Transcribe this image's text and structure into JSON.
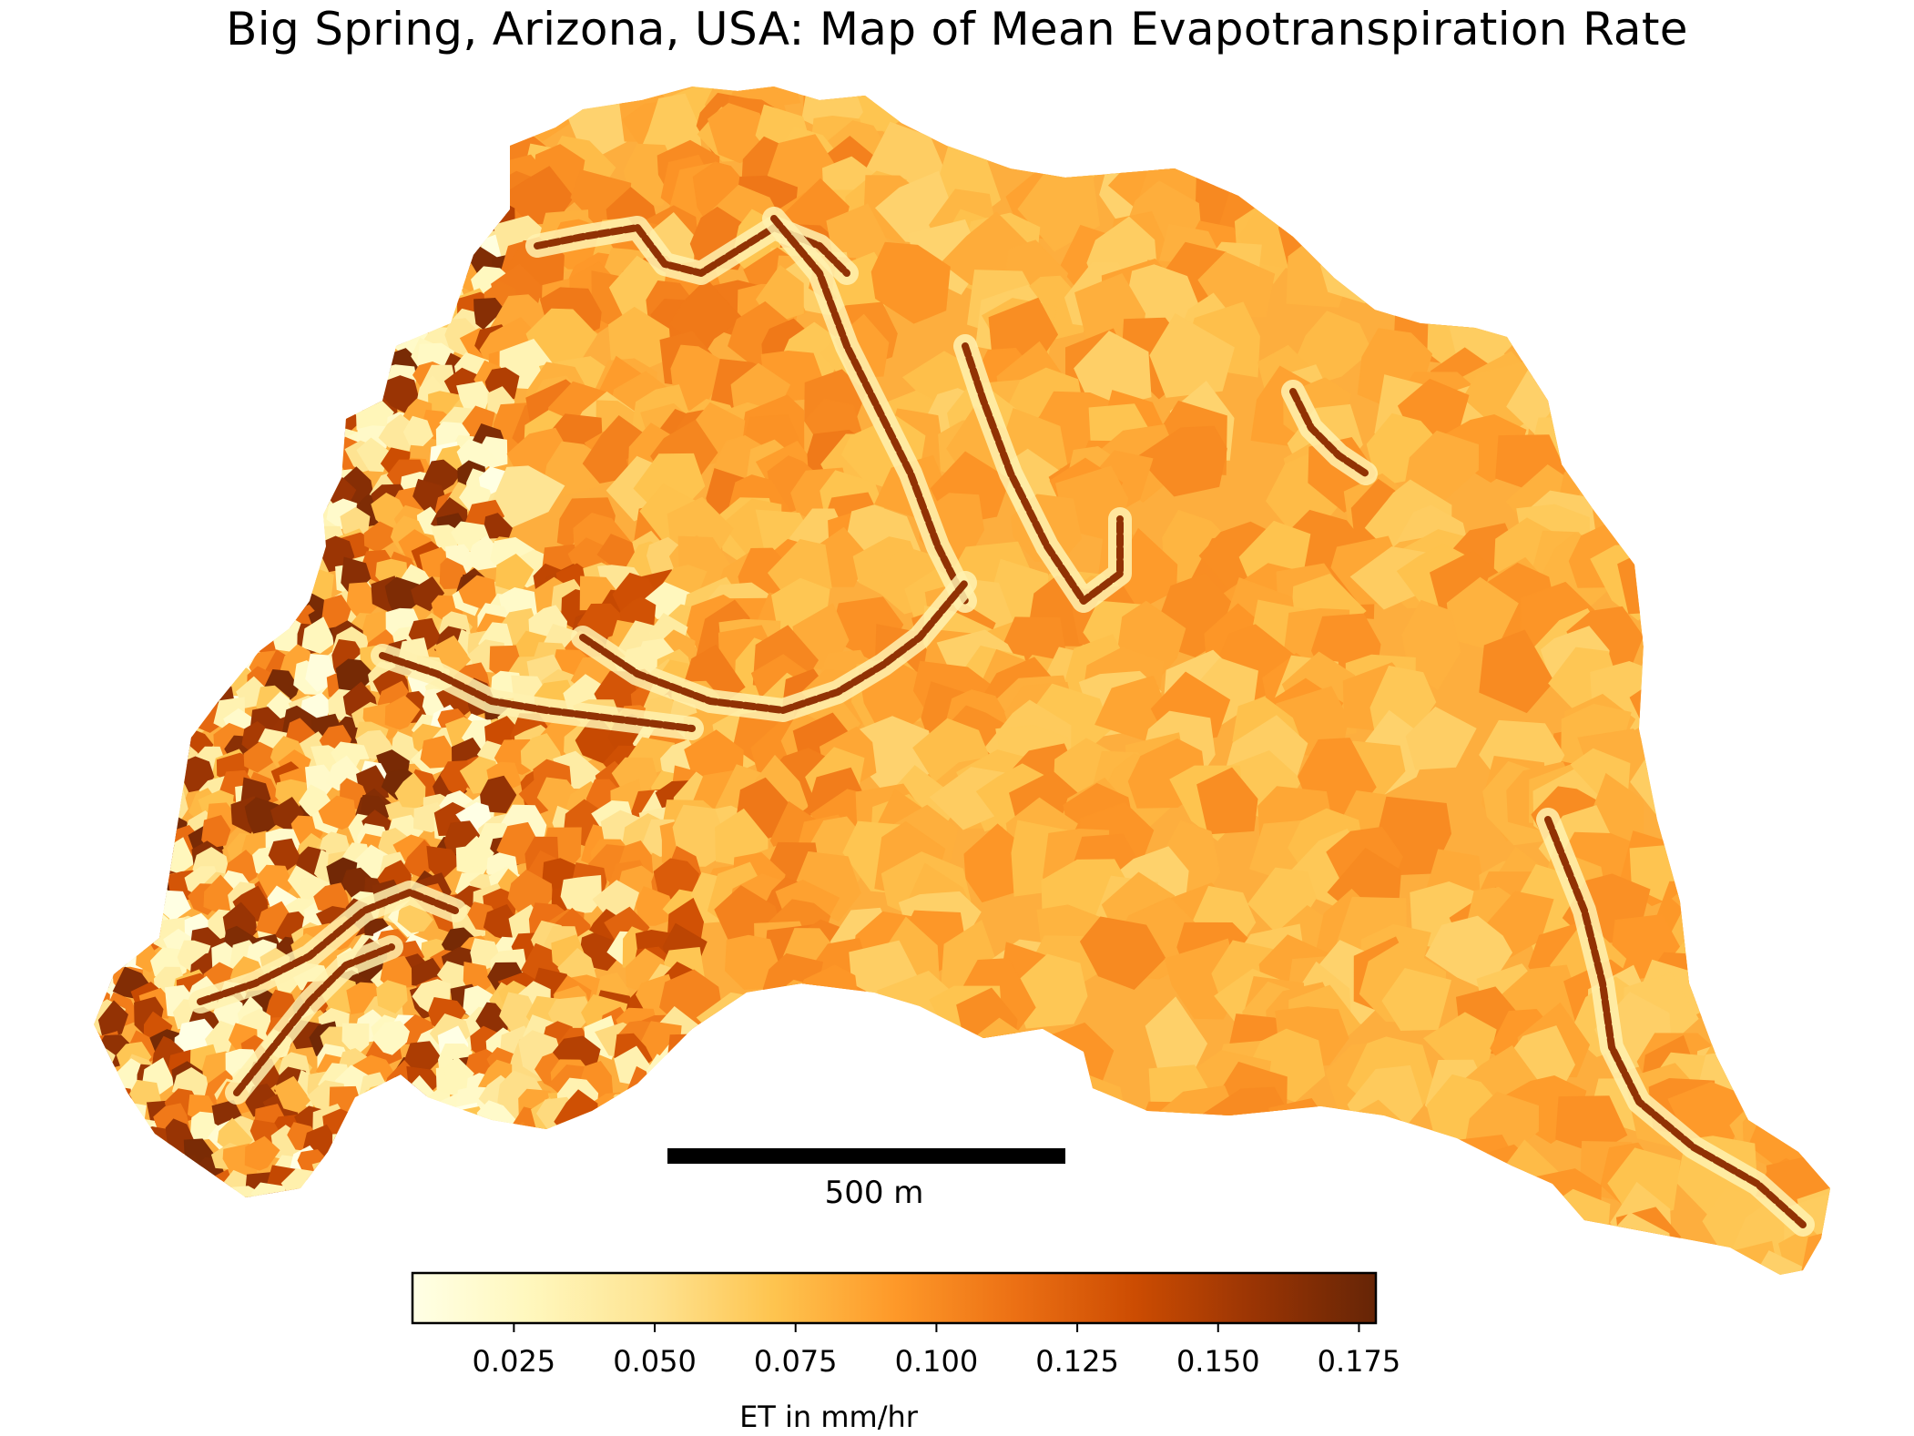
{
  "title": "Big Spring, Arizona, USA: Map of Mean Evapotranspiration Rate",
  "scale_bar": {
    "label": "500 m",
    "length_m": 500
  },
  "colorbar": {
    "label": "ET in mm/hr",
    "range": [
      0.007,
      0.178
    ],
    "ticks": [
      "0.025",
      "0.050",
      "0.075",
      "0.100",
      "0.125",
      "0.150",
      "0.175"
    ],
    "colormap": [
      "#ffffe5",
      "#fff7bc",
      "#fee391",
      "#fec44f",
      "#fe9929",
      "#ec7014",
      "#cc4c02",
      "#993404",
      "#662506"
    ]
  },
  "map": {
    "base_value": 0.085
  }
}
